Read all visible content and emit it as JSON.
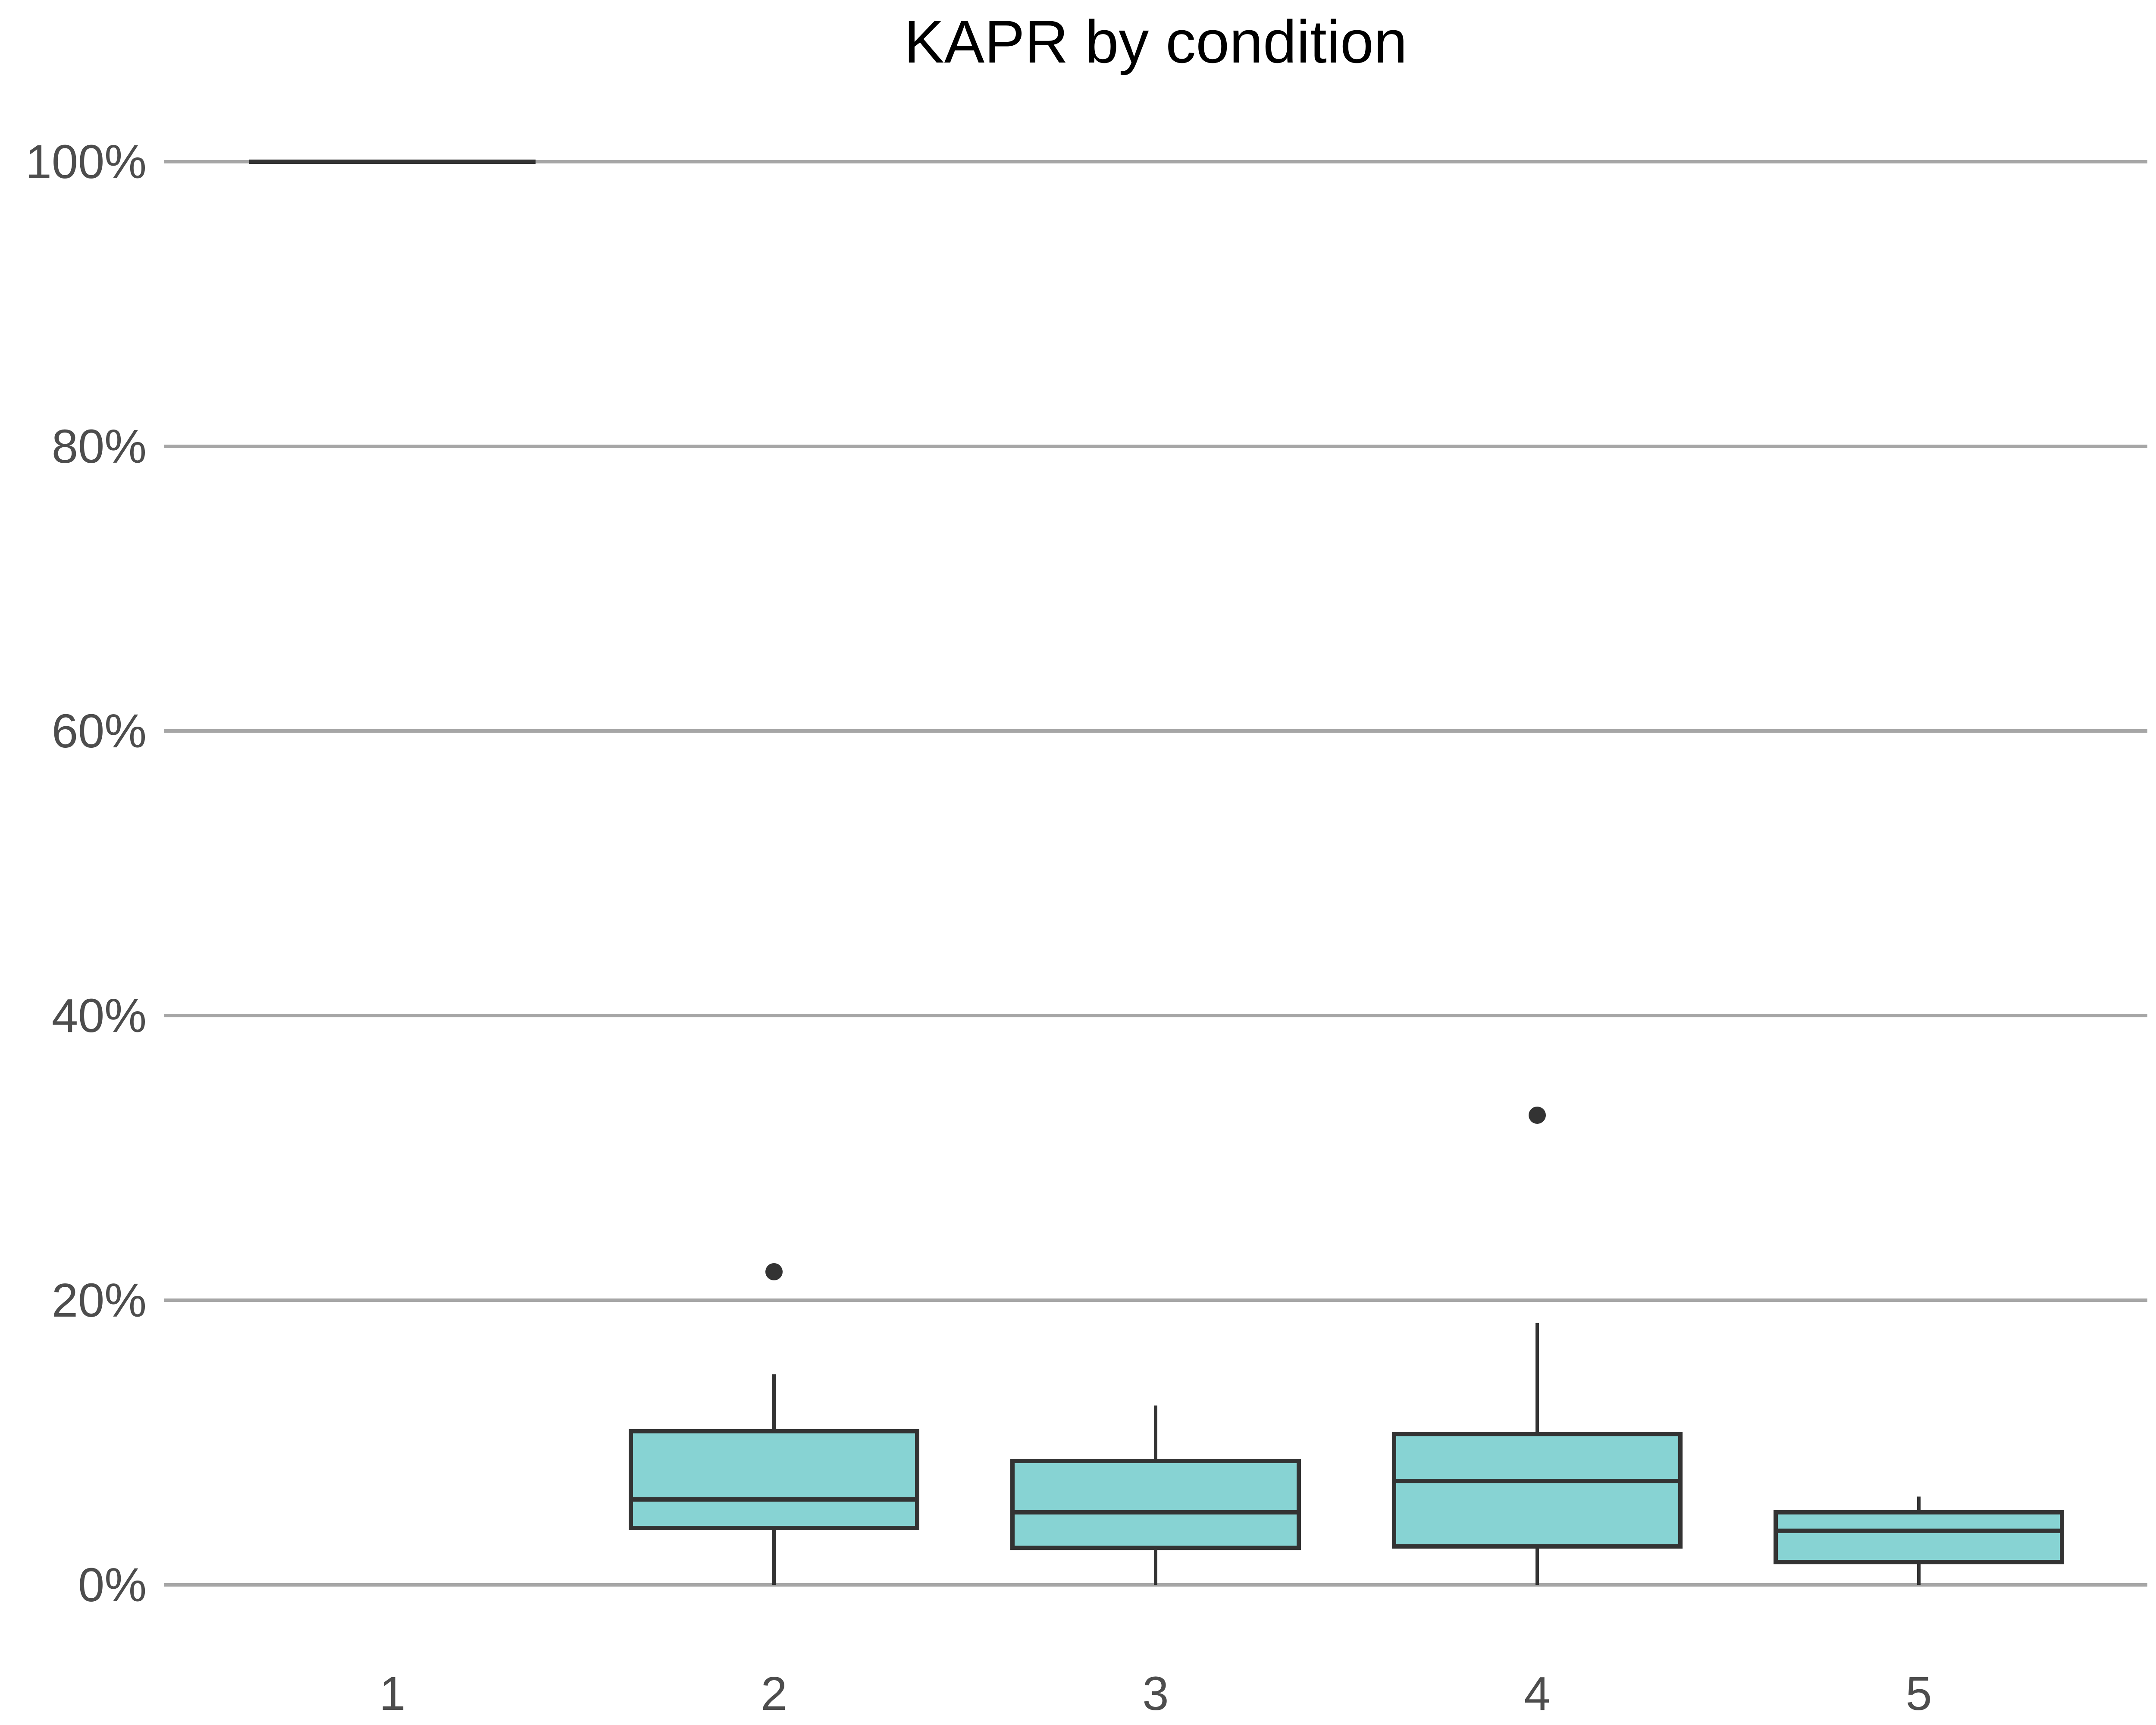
{
  "chart_data": {
    "type": "box",
    "title": "KAPR by condition",
    "xlabel": "",
    "ylabel": "",
    "categories": [
      "1",
      "2",
      "3",
      "4",
      "5"
    ],
    "ylim": [
      0,
      100
    ],
    "y_ticks": [
      0,
      20,
      40,
      60,
      80,
      100
    ],
    "y_tick_labels": [
      "0%",
      "20%",
      "40%",
      "60%",
      "80%",
      "100%"
    ],
    "grid": "horizontal",
    "box_fill": "#87d3d3",
    "line_color": "#333333",
    "boxes": [
      {
        "category": "1",
        "whisker_low": 100,
        "q1": 100,
        "median": 100,
        "q3": 100,
        "whisker_high": 100,
        "outliers": []
      },
      {
        "category": "2",
        "whisker_low": 0,
        "q1": 4.0,
        "median": 6.0,
        "q3": 10.8,
        "whisker_high": 14.8,
        "outliers": [
          22.0
        ]
      },
      {
        "category": "3",
        "whisker_low": 0,
        "q1": 2.6,
        "median": 5.1,
        "q3": 8.7,
        "whisker_high": 12.6,
        "outliers": []
      },
      {
        "category": "4",
        "whisker_low": 0,
        "q1": 2.7,
        "median": 7.3,
        "q3": 10.6,
        "whisker_high": 18.4,
        "outliers": [
          33.0
        ]
      },
      {
        "category": "5",
        "whisker_low": 0,
        "q1": 1.6,
        "median": 3.8,
        "q3": 5.1,
        "whisker_high": 6.2,
        "outliers": []
      }
    ]
  }
}
